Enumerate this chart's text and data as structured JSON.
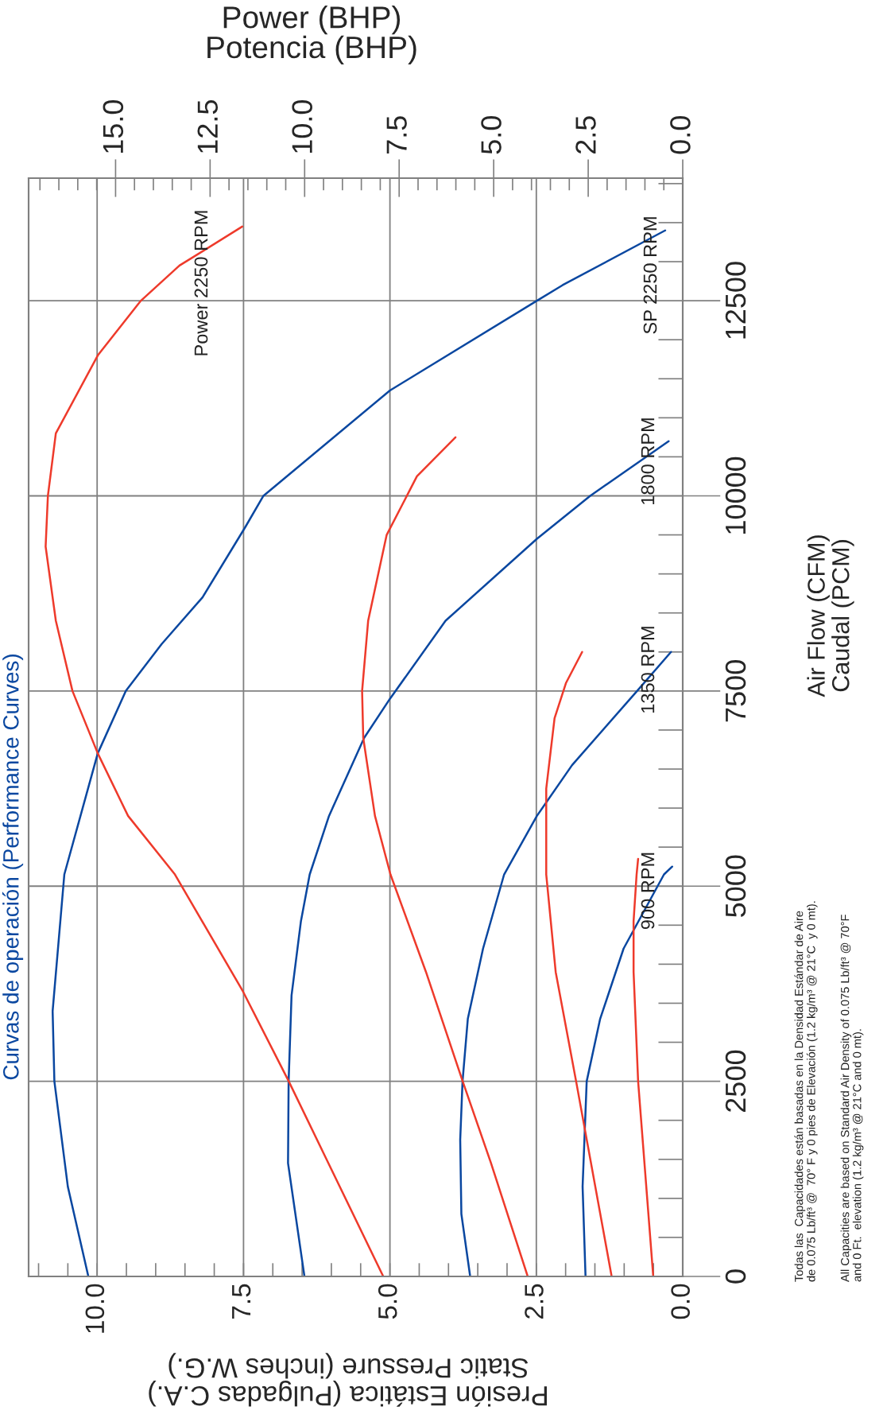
{
  "chart_data": {
    "type": "line",
    "title": "Curvas de operación (Performance Curves)",
    "ylabel": "Air Flow (CFM)\nCaudal (PCM)",
    "xlabel": "Presión Estática (Pulgadas C.A.)\nStatic Pressure (inches W.G.)",
    "x2label": "Power (BHP)\nPotencia (BHP)",
    "ylim": [
      0,
      14070
    ],
    "yticks": [
      0,
      2500,
      5000,
      7500,
      10000,
      12500
    ],
    "xlim": [
      11.17,
      0
    ],
    "xticks": [
      {
        "value": 0,
        "label": "0.0"
      },
      2.5,
      {
        "value": 5,
        "label": "5.0"
      },
      7.5,
      {
        "value": 10,
        "label": "10.0"
      }
    ],
    "x2lim": [
      17.3,
      0
    ],
    "x2ticks": [
      {
        "value": 0,
        "label": "0.0"
      },
      2.5,
      {
        "value": 5,
        "label": "5.0"
      },
      7.5,
      {
        "value": 10,
        "label": "10.0"
      },
      12.5,
      {
        "value": 15,
        "label": "15.0"
      }
    ],
    "grid": true,
    "series": [
      {
        "color": "#0a47a0",
        "values": [
          0,
          1150,
          2500,
          3400,
          5150,
          6700,
          7500,
          8100,
          8700,
          9600,
          10000,
          11350,
          12500,
          12700,
          13400
        ],
        "x": [
          10.15,
          10.5,
          10.73,
          10.76,
          10.56,
          9.99,
          9.51,
          8.9,
          8.2,
          7.47,
          7.16,
          5.0,
          2.49,
          2.05,
          0.3
        ]
      },
      {
        "color": "#0a47a0",
        "values": [
          0,
          1450,
          2500,
          3600,
          4550,
          5150,
          5900,
          6900,
          7400,
          8400,
          9450,
          10000,
          10700
        ],
        "x": [
          6.46,
          6.74,
          6.73,
          6.68,
          6.52,
          6.37,
          6.04,
          5.44,
          5.0,
          4.05,
          2.49,
          1.58,
          0.24
        ]
      },
      {
        "color": "#0a47a0",
        "values": [
          0,
          800,
          1750,
          2500,
          3300,
          4200,
          5150,
          5900,
          6550,
          7500,
          8000
        ],
        "x": [
          3.63,
          3.78,
          3.8,
          3.76,
          3.67,
          3.41,
          3.05,
          2.49,
          1.89,
          0.78,
          0.2
        ]
      },
      {
        "color": "#0a47a0",
        "values": [
          0,
          1150,
          2500,
          3300,
          4200,
          5150,
          5250
        ],
        "x": [
          1.66,
          1.71,
          1.64,
          1.41,
          1.01,
          0.32,
          0.18
        ]
      },
      {
        "color": "#ee3a2b",
        "axis": "x2",
        "values": [
          0,
          1450,
          2500,
          3650,
          5150,
          5900,
          6700,
          7500,
          8400,
          9350,
          10000,
          10800,
          11800,
          12500,
          12950,
          13450
        ],
        "x": [
          7.92,
          9.37,
          10.42,
          11.63,
          13.43,
          14.67,
          15.47,
          16.14,
          16.58,
          16.85,
          16.79,
          16.58,
          15.47,
          14.33,
          13.31,
          11.65
        ]
      },
      {
        "color": "#ee3a2b",
        "axis": "x2",
        "values": [
          0,
          1450,
          2500,
          3900,
          5150,
          5900,
          6900,
          7500,
          8400,
          9500,
          10250,
          10750
        ],
        "x": [
          4.1,
          5.07,
          5.82,
          6.79,
          7.73,
          8.14,
          8.45,
          8.48,
          8.32,
          7.83,
          7.03,
          6.01
        ]
      },
      {
        "color": "#ee3a2b",
        "axis": "x2",
        "values": [
          0,
          2500,
          3900,
          5150,
          6250,
          7150,
          7600,
          8000
        ],
        "x": [
          1.88,
          2.82,
          3.36,
          3.61,
          3.61,
          3.39,
          3.09,
          2.66
        ]
      },
      {
        "color": "#ee3a2b",
        "axis": "x2",
        "values": [
          0,
          2500,
          3900,
          4550,
          5150,
          5350
        ],
        "x": [
          0.78,
          1.18,
          1.3,
          1.3,
          1.22,
          1.18
        ]
      }
    ],
    "annotations": [
      "Power 2250 RPM",
      "SP 2250 RPM",
      "1800 RPM",
      "1350 RPM",
      "900 RPM",
      "Todas las  Capacidades están basadas en la Densidad Estándar de Aire\nde 0.075 Lb/ft³ @  70° F y 0 pies de Elevación (1.2 kg/m³ @ 21°C  y 0 mt).",
      "All Capacities are based on Standard Air Density of 0.075 Lb/ft³ @ 70°F\nand 0 Ft.  elevation (1.2 kg/m³ @ 21°C and 0 mt)."
    ]
  }
}
